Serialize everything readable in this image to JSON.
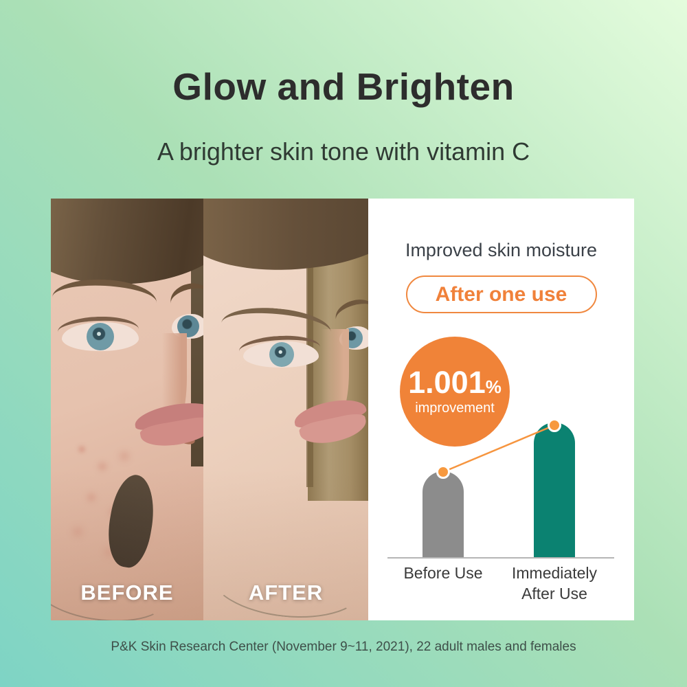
{
  "page": {
    "title": "Glow and Brighten",
    "subtitle": "A brighter skin tone with vitamin C",
    "footnote": "P&K Skin Research Center (November 9~11, 2021), 22 adult males and females"
  },
  "comparison": {
    "before_label": "BEFORE",
    "after_label": "AFTER"
  },
  "panel": {
    "heading": "Improved skin moisture",
    "badge_label": "After one use",
    "highlight": {
      "value": "1.001",
      "unit": "%",
      "caption": "improvement"
    }
  },
  "chart_data": {
    "type": "bar",
    "title": "Improved skin moisture",
    "badge": "After one use",
    "categories": [
      "Before Use",
      "Immediately After Use"
    ],
    "values": [
      64,
      100
    ],
    "values_note": "relative bar heights (% of taller bar); chart has no numeric axis",
    "annotation": "1.001% improvement",
    "annotation_target": "Immediately After Use",
    "series_colors": {
      "Before Use": "#8c8c8c",
      "Immediately After Use": "#0b8271"
    },
    "connector_color": "#f6953f",
    "xlabel": "",
    "ylabel": "",
    "axis": "baseline only, no ticks",
    "legend": "none"
  },
  "colors": {
    "accent_orange": "#f0813a",
    "circle_orange": "#f08338",
    "bar_gray": "#8c8c8c",
    "bar_teal": "#0b8271",
    "title_text": "#2d2d2d",
    "heading_text": "#3b4148",
    "footnote_text": "#3e4f49",
    "background_top_right": "#e4fcdd",
    "background_bottom_left": "#7ed4c5"
  }
}
